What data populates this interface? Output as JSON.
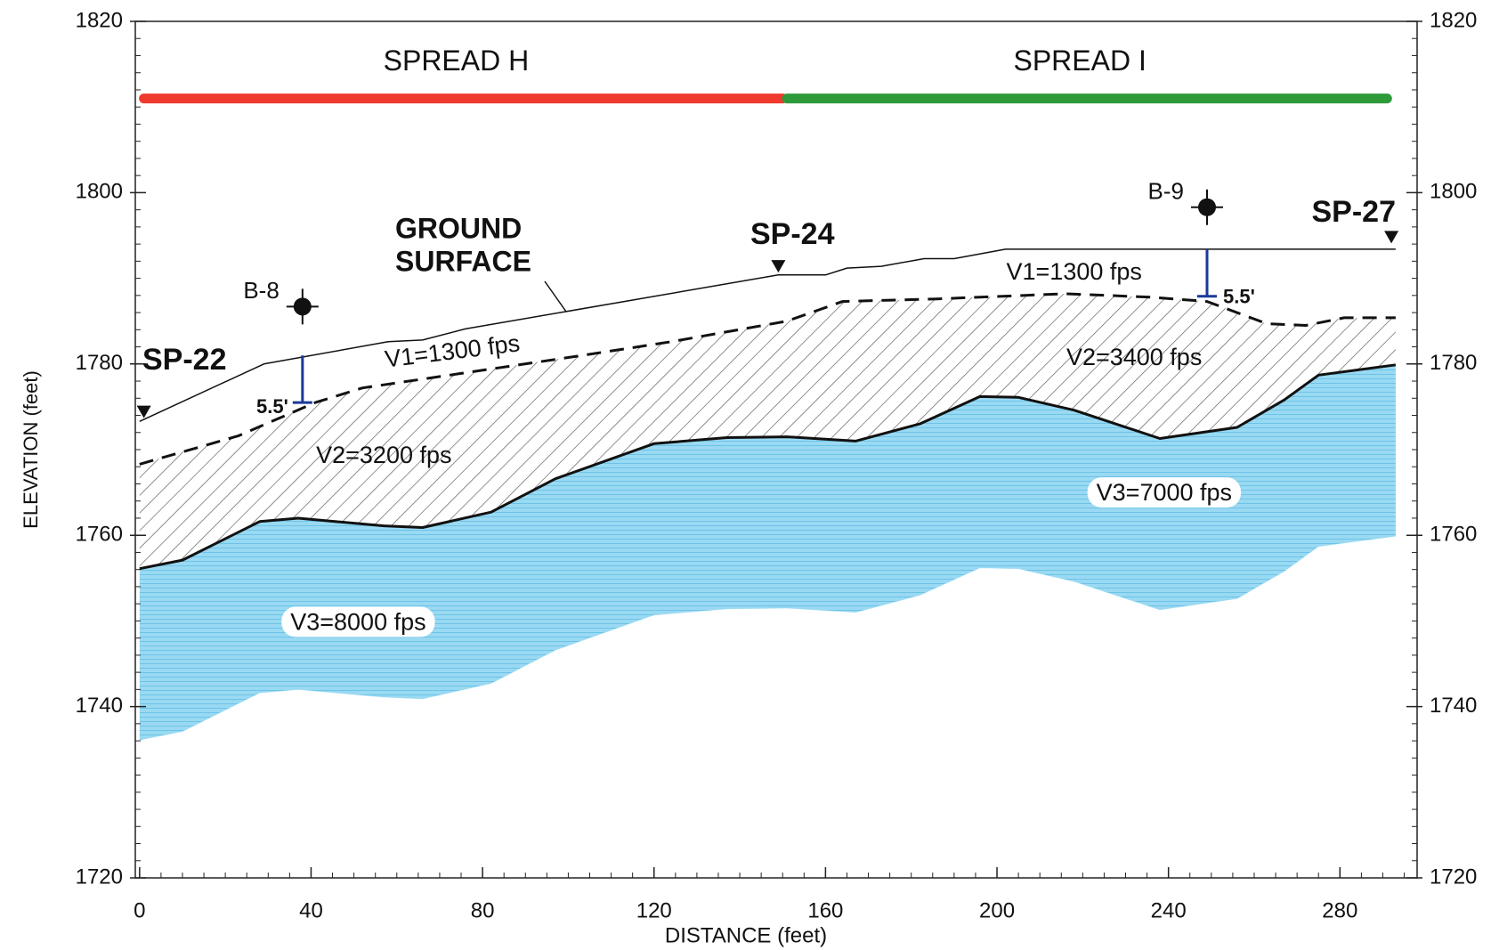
{
  "chart_data": {
    "type": "profile",
    "xlabel": "DISTANCE (feet)",
    "ylabel": "ELEVATION (feet)",
    "xlim": [
      -1,
      298
    ],
    "xticks": [
      0,
      40,
      80,
      120,
      160,
      200,
      240,
      280
    ],
    "x_minor_step": 5,
    "ylim": [
      1720,
      1820
    ],
    "yticks": [
      1720,
      1740,
      1760,
      1780,
      1800,
      1820
    ],
    "y_minor_step": 2,
    "right_axis": true,
    "ground_surface": {
      "label": [
        "GROUND",
        "SURFACE"
      ],
      "color": "#111111",
      "x": [
        0,
        29,
        58,
        66,
        76,
        149,
        160,
        165,
        173,
        183,
        190,
        202,
        293
      ],
      "y": [
        1773.3,
        1780,
        1782.6,
        1782.8,
        1784.1,
        1790.4,
        1790.4,
        1791.2,
        1791.4,
        1792.3,
        1792.3,
        1793.4,
        1793.4
      ]
    },
    "v1_base": {
      "color": "#111111",
      "dashed": true,
      "x": [
        0,
        23,
        41,
        52,
        75,
        102,
        124,
        151,
        164,
        186,
        216,
        236,
        249,
        263,
        272,
        281,
        293
      ],
      "y": [
        1768.3,
        1771.6,
        1775.5,
        1777.2,
        1778.9,
        1780.9,
        1782.6,
        1785,
        1787.3,
        1787.6,
        1788.2,
        1787.8,
        1787.3,
        1784.7,
        1784.5,
        1785.4,
        1785.4
      ]
    },
    "v2_base": {
      "color": "#111111",
      "hatch_color": "#555555",
      "x": [
        0,
        10,
        28,
        37,
        57,
        66,
        82,
        97,
        120,
        137,
        151,
        167,
        182,
        196,
        205,
        218,
        238,
        256,
        267,
        275,
        293
      ],
      "y": [
        1756.1,
        1757.1,
        1761.6,
        1762,
        1761.1,
        1760.9,
        1762.7,
        1766.6,
        1770.7,
        1771.4,
        1771.5,
        1771,
        1773,
        1776.2,
        1776.1,
        1774.6,
        1771.3,
        1772.6,
        1775.8,
        1778.7,
        1779.9
      ]
    },
    "v3_base": {
      "color": "#8dd4f0",
      "x": [
        0,
        10,
        28,
        37,
        57,
        66,
        82,
        97,
        120,
        137,
        151,
        167,
        182,
        196,
        205,
        218,
        238,
        256,
        267,
        275,
        293
      ],
      "y": [
        1736.1,
        1737.1,
        1741.6,
        1742,
        1741.1,
        1740.9,
        1742.7,
        1746.6,
        1750.7,
        1751.4,
        1751.5,
        1751,
        1753,
        1756.2,
        1756.1,
        1754.6,
        1751.3,
        1752.6,
        1755.8,
        1758.7,
        1759.9
      ]
    },
    "spreads": [
      {
        "label": "SPREAD H",
        "color": "#f03a2e",
        "x": [
          1,
          150
        ],
        "y": 1811
      },
      {
        "label": "SPREAD I",
        "color": "#2e9a3a",
        "x": [
          151,
          291
        ],
        "y": 1811
      }
    ],
    "shot_points": [
      {
        "label": "SP-22",
        "x": 1,
        "y": 1774.4
      },
      {
        "label": "SP-24",
        "x": 149,
        "y": 1791.4
      },
      {
        "label": "SP-27",
        "x": 292,
        "y": 1794.8
      }
    ],
    "borings": [
      {
        "label": "B-8",
        "x": 38,
        "y": 1786.7,
        "top": 1781,
        "depth": 5.5,
        "depth_label": "5.5'"
      },
      {
        "label": "B-9",
        "x": 249,
        "y": 1798.3,
        "top": 1793.4,
        "depth": 5.5,
        "depth_label": "5.5'"
      }
    ],
    "velocity_labels": [
      "V1=1300 fps",
      "V1=1300 fps",
      "V2=3200 fps",
      "V2=3400 fps",
      "V3=8000 fps",
      "V3=7000 fps"
    ]
  }
}
